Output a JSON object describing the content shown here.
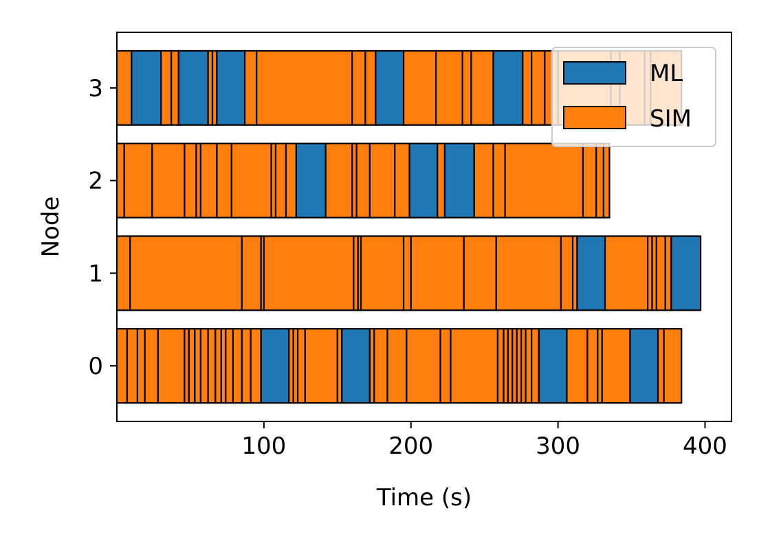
{
  "chart_data": {
    "type": "gantt",
    "xlabel": "Time (s)",
    "ylabel": "Node",
    "xlim": [
      0,
      418
    ],
    "ylim": [
      -0.6,
      3.6
    ],
    "xticks": [
      "100",
      "200",
      "300",
      "400"
    ],
    "yticks": [
      "0",
      "1",
      "2",
      "3"
    ],
    "legend": {
      "position": "upper right",
      "items": [
        "ML",
        "SIM"
      ]
    },
    "colors": {
      "ML": "#1f77b4",
      "SIM": "#ff7f0e",
      "edge": "#000000"
    },
    "series": [
      {
        "node": "0",
        "segments": [
          {
            "type": "SIM",
            "start": 0,
            "end": 7
          },
          {
            "type": "SIM",
            "start": 7,
            "end": 14
          },
          {
            "type": "SIM",
            "start": 14,
            "end": 19
          },
          {
            "type": "SIM",
            "start": 19,
            "end": 28
          },
          {
            "type": "SIM",
            "start": 28,
            "end": 46
          },
          {
            "type": "SIM",
            "start": 46,
            "end": 49
          },
          {
            "type": "SIM",
            "start": 49,
            "end": 53
          },
          {
            "type": "SIM",
            "start": 53,
            "end": 57
          },
          {
            "type": "SIM",
            "start": 57,
            "end": 62
          },
          {
            "type": "SIM",
            "start": 62,
            "end": 67
          },
          {
            "type": "SIM",
            "start": 67,
            "end": 71
          },
          {
            "type": "SIM",
            "start": 71,
            "end": 74
          },
          {
            "type": "SIM",
            "start": 74,
            "end": 79
          },
          {
            "type": "SIM",
            "start": 79,
            "end": 85
          },
          {
            "type": "SIM",
            "start": 85,
            "end": 91
          },
          {
            "type": "SIM",
            "start": 91,
            "end": 98
          },
          {
            "type": "ML",
            "start": 98,
            "end": 117
          },
          {
            "type": "SIM",
            "start": 117,
            "end": 120
          },
          {
            "type": "SIM",
            "start": 120,
            "end": 123
          },
          {
            "type": "SIM",
            "start": 123,
            "end": 128
          },
          {
            "type": "SIM",
            "start": 128,
            "end": 150
          },
          {
            "type": "SIM",
            "start": 150,
            "end": 153
          },
          {
            "type": "ML",
            "start": 153,
            "end": 172
          },
          {
            "type": "SIM",
            "start": 172,
            "end": 175
          },
          {
            "type": "SIM",
            "start": 175,
            "end": 184
          },
          {
            "type": "SIM",
            "start": 184,
            "end": 197
          },
          {
            "type": "SIM",
            "start": 197,
            "end": 220
          },
          {
            "type": "SIM",
            "start": 220,
            "end": 227
          },
          {
            "type": "SIM",
            "start": 227,
            "end": 259
          },
          {
            "type": "SIM",
            "start": 259,
            "end": 263
          },
          {
            "type": "SIM",
            "start": 263,
            "end": 266
          },
          {
            "type": "SIM",
            "start": 266,
            "end": 269
          },
          {
            "type": "SIM",
            "start": 269,
            "end": 272
          },
          {
            "type": "SIM",
            "start": 272,
            "end": 275
          },
          {
            "type": "SIM",
            "start": 275,
            "end": 278
          },
          {
            "type": "SIM",
            "start": 278,
            "end": 282
          },
          {
            "type": "SIM",
            "start": 282,
            "end": 287
          },
          {
            "type": "ML",
            "start": 287,
            "end": 306
          },
          {
            "type": "SIM",
            "start": 306,
            "end": 320
          },
          {
            "type": "SIM",
            "start": 320,
            "end": 327
          },
          {
            "type": "SIM",
            "start": 327,
            "end": 330
          },
          {
            "type": "SIM",
            "start": 330,
            "end": 349
          },
          {
            "type": "ML",
            "start": 349,
            "end": 368
          },
          {
            "type": "SIM",
            "start": 368,
            "end": 372
          },
          {
            "type": "SIM",
            "start": 372,
            "end": 384
          }
        ]
      },
      {
        "node": "1",
        "segments": [
          {
            "type": "SIM",
            "start": 0,
            "end": 9
          },
          {
            "type": "SIM",
            "start": 9,
            "end": 85
          },
          {
            "type": "SIM",
            "start": 85,
            "end": 98
          },
          {
            "type": "SIM",
            "start": 98,
            "end": 100
          },
          {
            "type": "SIM",
            "start": 100,
            "end": 161
          },
          {
            "type": "SIM",
            "start": 161,
            "end": 164
          },
          {
            "type": "SIM",
            "start": 164,
            "end": 166
          },
          {
            "type": "SIM",
            "start": 166,
            "end": 195
          },
          {
            "type": "SIM",
            "start": 195,
            "end": 200
          },
          {
            "type": "SIM",
            "start": 200,
            "end": 236
          },
          {
            "type": "SIM",
            "start": 236,
            "end": 258
          },
          {
            "type": "SIM",
            "start": 258,
            "end": 302
          },
          {
            "type": "SIM",
            "start": 302,
            "end": 310
          },
          {
            "type": "SIM",
            "start": 310,
            "end": 313
          },
          {
            "type": "ML",
            "start": 313,
            "end": 332
          },
          {
            "type": "SIM",
            "start": 332,
            "end": 361
          },
          {
            "type": "SIM",
            "start": 361,
            "end": 364
          },
          {
            "type": "SIM",
            "start": 364,
            "end": 367
          },
          {
            "type": "SIM",
            "start": 367,
            "end": 373
          },
          {
            "type": "SIM",
            "start": 373,
            "end": 377
          },
          {
            "type": "ML",
            "start": 377,
            "end": 397
          }
        ]
      },
      {
        "node": "2",
        "segments": [
          {
            "type": "SIM",
            "start": 0,
            "end": 5
          },
          {
            "type": "SIM",
            "start": 5,
            "end": 24
          },
          {
            "type": "SIM",
            "start": 24,
            "end": 46
          },
          {
            "type": "SIM",
            "start": 46,
            "end": 54
          },
          {
            "type": "SIM",
            "start": 54,
            "end": 57
          },
          {
            "type": "SIM",
            "start": 57,
            "end": 68
          },
          {
            "type": "SIM",
            "start": 68,
            "end": 78
          },
          {
            "type": "SIM",
            "start": 78,
            "end": 105
          },
          {
            "type": "SIM",
            "start": 105,
            "end": 108
          },
          {
            "type": "SIM",
            "start": 108,
            "end": 115
          },
          {
            "type": "SIM",
            "start": 115,
            "end": 122
          },
          {
            "type": "ML",
            "start": 122,
            "end": 142
          },
          {
            "type": "SIM",
            "start": 142,
            "end": 160
          },
          {
            "type": "SIM",
            "start": 160,
            "end": 163
          },
          {
            "type": "SIM",
            "start": 163,
            "end": 172
          },
          {
            "type": "SIM",
            "start": 172,
            "end": 189
          },
          {
            "type": "SIM",
            "start": 189,
            "end": 199
          },
          {
            "type": "ML",
            "start": 199,
            "end": 218
          },
          {
            "type": "SIM",
            "start": 218,
            "end": 223
          },
          {
            "type": "ML",
            "start": 223,
            "end": 243
          },
          {
            "type": "SIM",
            "start": 243,
            "end": 256
          },
          {
            "type": "SIM",
            "start": 256,
            "end": 264
          },
          {
            "type": "SIM",
            "start": 264,
            "end": 317
          },
          {
            "type": "SIM",
            "start": 317,
            "end": 326
          },
          {
            "type": "SIM",
            "start": 326,
            "end": 331
          },
          {
            "type": "SIM",
            "start": 331,
            "end": 335
          }
        ]
      },
      {
        "node": "3",
        "segments": [
          {
            "type": "SIM",
            "start": 0,
            "end": 10
          },
          {
            "type": "ML",
            "start": 10,
            "end": 30
          },
          {
            "type": "SIM",
            "start": 30,
            "end": 37
          },
          {
            "type": "SIM",
            "start": 37,
            "end": 42
          },
          {
            "type": "ML",
            "start": 42,
            "end": 62
          },
          {
            "type": "SIM",
            "start": 62,
            "end": 65
          },
          {
            "type": "SIM",
            "start": 65,
            "end": 68
          },
          {
            "type": "ML",
            "start": 68,
            "end": 87
          },
          {
            "type": "SIM",
            "start": 87,
            "end": 95
          },
          {
            "type": "SIM",
            "start": 95,
            "end": 160
          },
          {
            "type": "SIM",
            "start": 160,
            "end": 169
          },
          {
            "type": "SIM",
            "start": 169,
            "end": 176
          },
          {
            "type": "ML",
            "start": 176,
            "end": 195
          },
          {
            "type": "SIM",
            "start": 195,
            "end": 217
          },
          {
            "type": "SIM",
            "start": 217,
            "end": 235
          },
          {
            "type": "SIM",
            "start": 235,
            "end": 241
          },
          {
            "type": "SIM",
            "start": 241,
            "end": 256
          },
          {
            "type": "ML",
            "start": 256,
            "end": 276
          },
          {
            "type": "SIM",
            "start": 276,
            "end": 282
          },
          {
            "type": "SIM",
            "start": 282,
            "end": 291
          },
          {
            "type": "SIM",
            "start": 291,
            "end": 300
          },
          {
            "type": "SIM",
            "start": 300,
            "end": 336
          },
          {
            "type": "SIM",
            "start": 336,
            "end": 342
          },
          {
            "type": "SIM",
            "start": 342,
            "end": 359
          },
          {
            "type": "SIM",
            "start": 359,
            "end": 363
          },
          {
            "type": "SIM",
            "start": 363,
            "end": 384
          }
        ]
      }
    ]
  }
}
